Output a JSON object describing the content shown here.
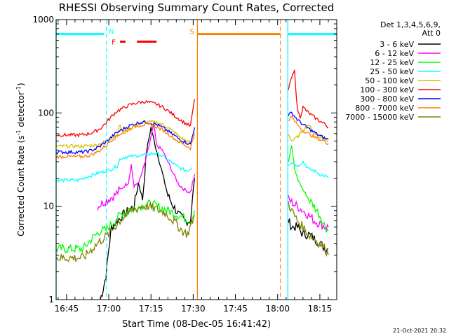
{
  "chart_data": {
    "type": "line",
    "title": "RHESSI Observing Summary Count Rates, Corrected",
    "xlabel": "Start Time (08-Dec-05 16:41:42)",
    "ylabel_main": "Corrected Count Rate (s",
    "ylabel_sup1": "-1",
    "ylabel_mid": " detector",
    "ylabel_sup2": "-1",
    "ylabel_end": ")",
    "yscale": "log",
    "ylim": [
      1,
      1000
    ],
    "xlim_min": [
      -3.7,
      96
    ],
    "y_ticks": [
      {
        "value": 1,
        "label": "1"
      },
      {
        "value": 10,
        "label": "10"
      },
      {
        "value": 100,
        "label": "100"
      },
      {
        "value": 1000,
        "label": "1000"
      }
    ],
    "x_ticks": [
      {
        "value": 0,
        "label": "16:45"
      },
      {
        "value": 15,
        "label": "17:00"
      },
      {
        "value": 30,
        "label": "17:15"
      },
      {
        "value": 45,
        "label": "17:30"
      },
      {
        "value": 60,
        "label": "17:45"
      },
      {
        "value": 75,
        "label": "18:00"
      },
      {
        "value": 90,
        "label": "18:15"
      }
    ],
    "legend_title": [
      "Det 1,3,4,5,6,9,",
      "Att 0"
    ],
    "timestamp": "21-Oct-2021 20:32",
    "flags": [
      {
        "label": "N",
        "color": "#00ffff",
        "level": 700,
        "segments": [
          [
            -3.7,
            13.3
          ],
          [
            78.6,
            96
          ]
        ],
        "markers": [
          14.2,
          96
        ],
        "marker_style": "dashed",
        "solid_markers": [
          -3.7,
          78.6
        ]
      },
      {
        "label": "F",
        "color": "#ff0000",
        "level": 580,
        "segments": [
          [
            19,
            21
          ],
          [
            25,
            32
          ]
        ]
      },
      {
        "label": "S",
        "color": "#ff8000",
        "level": 700,
        "segments": [
          [
            46.5,
            76
          ]
        ],
        "solid_markers": [
          46.5
        ],
        "dashed_markers": [
          76
        ]
      }
    ],
    "series": [
      {
        "name": "3 - 6 keV",
        "color": "#000000",
        "segments": [
          {
            "x": [
              12,
              13,
              14,
              15,
              16,
              18,
              20,
              22,
              24,
              25.5,
              27,
              28.5,
              30,
              31.5,
              33,
              34.5,
              36,
              38,
              40,
              42,
              44,
              45.5
            ],
            "y": [
              1,
              1.3,
              1.8,
              3.5,
              6,
              7,
              8,
              9,
              10,
              18,
              12,
              40,
              70,
              45,
              30,
              20,
              13,
              10,
              8,
              7,
              7,
              20
            ]
          },
          {
            "x": [
              78.8,
              80,
              82,
              84,
              86,
              88,
              90,
              92,
              93
            ],
            "y": [
              7,
              6,
              6,
              5,
              5,
              4.5,
              4,
              3.5,
              3.5
            ]
          }
        ]
      },
      {
        "name": "6 - 12 keV",
        "color": "#ff00ff",
        "segments": [
          {
            "x": [
              11,
              13,
              15,
              17,
              19,
              21,
              22,
              23,
              24,
              26,
              28,
              30,
              31,
              32,
              34,
              36,
              38,
              40,
              42,
              44,
              45.5
            ],
            "y": [
              10,
              11,
              12,
              13,
              15,
              17,
              18,
              28,
              16,
              19,
              30,
              55,
              75,
              45,
              40,
              30,
              22,
              17,
              15,
              14,
              22
            ]
          },
          {
            "x": [
              78.8,
              80,
              82,
              84,
              86,
              88,
              90,
              92,
              93
            ],
            "y": [
              12,
              11,
              10,
              9,
              8,
              7,
              6.5,
              6,
              6
            ]
          }
        ]
      },
      {
        "name": "12 - 25 keV",
        "color": "#00ff00",
        "segments": [
          {
            "x": [
              -3.7,
              4,
              6,
              9,
              12,
              14,
              16,
              18,
              20,
              22,
              24,
              26,
              28,
              30,
              32,
              34,
              36,
              38,
              40,
              42,
              44,
              45.5
            ],
            "y": [
              3.5,
              3.5,
              3.5,
              4.5,
              5.5,
              5.5,
              6.5,
              7.5,
              8.5,
              9,
              9.5,
              10,
              10.5,
              10.5,
              10,
              9.5,
              9,
              8.5,
              8,
              7.5,
              7,
              9
            ]
          },
          {
            "x": [
              78.8,
              80,
              81,
              82,
              84,
              86,
              88,
              90,
              92,
              93
            ],
            "y": [
              30,
              45,
              25,
              20,
              15,
              12,
              10,
              8,
              6,
              5.5
            ]
          }
        ]
      },
      {
        "name": "25 - 50 keV",
        "color": "#00ffff",
        "segments": [
          {
            "x": [
              -3.7,
              2,
              4,
              6,
              8,
              10,
              12,
              14,
              16,
              18,
              19,
              21,
              23,
              25,
              27,
              29,
              31,
              33,
              35,
              37,
              39,
              41,
              43,
              44.5
            ],
            "y": [
              19,
              19,
              19,
              20,
              21,
              22,
              23,
              24,
              25,
              27,
              32,
              34,
              34,
              35,
              35,
              36,
              37,
              36,
              33,
              30,
              27,
              25,
              24,
              26
            ]
          },
          {
            "x": [
              78.8,
              80,
              82,
              84,
              86,
              88,
              90,
              92,
              93
            ],
            "y": [
              28,
              30,
              27,
              30,
              25,
              24,
              22,
              21,
              20
            ]
          }
        ]
      },
      {
        "name": "50 - 100 keV",
        "color": "#d4c000",
        "segments": [
          {
            "x": [
              -3.7,
              2,
              6,
              10,
              12,
              14,
              16,
              18,
              19,
              20,
              22,
              24,
              26,
              28,
              30,
              32,
              34,
              36,
              38,
              40,
              42,
              44,
              45.5
            ],
            "y": [
              44,
              44,
              44,
              45,
              47,
              50,
              54,
              58,
              75,
              60,
              66,
              72,
              77,
              80,
              80,
              79,
              75,
              70,
              63,
              56,
              51,
              48,
              55
            ]
          },
          {
            "x": [
              78.8,
              80,
              82,
              84,
              86,
              88,
              90,
              92,
              93
            ],
            "y": [
              60,
              50,
              55,
              65,
              75,
              60,
              56,
              52,
              50
            ]
          }
        ]
      },
      {
        "name": "100 - 300 keV",
        "color": "#ff0000",
        "segments": [
          {
            "x": [
              -3.7,
              2,
              5,
              8,
              10,
              12,
              14,
              16,
              18,
              20,
              22,
              24,
              26,
              28,
              30,
              32,
              34,
              36,
              38,
              40,
              42,
              44,
              45.5
            ],
            "y": [
              58,
              58,
              58,
              60,
              63,
              68,
              78,
              92,
              105,
              112,
              120,
              126,
              130,
              132,
              128,
              124,
              116,
              106,
              95,
              86,
              78,
              72,
              140
            ]
          },
          {
            "x": [
              78.8,
              80,
              81,
              82,
              83,
              84,
              86,
              88,
              90,
              92,
              93
            ],
            "y": [
              180,
              240,
              280,
              110,
              90,
              115,
              100,
              90,
              82,
              75,
              70
            ]
          }
        ]
      },
      {
        "name": "300 - 800 keV",
        "color": "#0000ff",
        "segments": [
          {
            "x": [
              -3.7,
              2,
              5,
              8,
              10,
              12,
              14,
              16,
              18,
              20,
              22,
              24,
              26,
              28,
              30,
              32,
              34,
              36,
              38,
              40,
              42,
              44,
              45.5
            ],
            "y": [
              38,
              38,
              38,
              39,
              41,
              44,
              49,
              55,
              62,
              67,
              72,
              76,
              79,
              80,
              78,
              75,
              70,
              64,
              58,
              53,
              49,
              46,
              70
            ]
          },
          {
            "x": [
              78.8,
              80,
              82,
              84,
              86,
              88,
              90,
              92,
              93
            ],
            "y": [
              95,
              100,
              85,
              75,
              68,
              62,
              57,
              53,
              52
            ]
          }
        ]
      },
      {
        "name": "800 - 7000 keV",
        "color": "#ff8000",
        "segments": [
          {
            "x": [
              -3.7,
              2,
              5,
              8,
              10,
              12,
              14,
              16,
              18,
              20,
              22,
              24,
              26,
              28,
              30,
              32,
              34,
              36,
              38,
              40,
              42,
              44,
              45.5
            ],
            "y": [
              34,
              34,
              34,
              35,
              37,
              40,
              45,
              51,
              57,
              62,
              67,
              71,
              74,
              75,
              74,
              71,
              66,
              60,
              54,
              49,
              45,
              42,
              60
            ]
          },
          {
            "x": [
              78.8,
              80,
              82,
              84,
              86,
              88,
              90,
              92,
              93
            ],
            "y": [
              85,
              90,
              75,
              65,
              60,
              55,
              52,
              49,
              47
            ]
          }
        ]
      },
      {
        "name": "7000 - 15000 keV",
        "color": "#808000",
        "segments": [
          {
            "x": [
              -3.7,
              4,
              6,
              9,
              11,
              13,
              15,
              17,
              19,
              21,
              23,
              25,
              27,
              29,
              31,
              33,
              35,
              37,
              39,
              41,
              43,
              45.5
            ],
            "y": [
              2.8,
              2.8,
              2.8,
              3.5,
              4,
              4.5,
              5,
              6,
              7,
              8,
              9,
              9.5,
              10,
              10,
              9.5,
              9,
              8.5,
              7.5,
              6.5,
              5.5,
              5,
              8
            ]
          },
          {
            "x": [
              78.8,
              80,
              82,
              84,
              86,
              88,
              90,
              92,
              93
            ],
            "y": [
              11,
              9,
              7,
              6,
              5,
              4.5,
              4,
              3.5,
              3
            ]
          }
        ]
      }
    ]
  }
}
